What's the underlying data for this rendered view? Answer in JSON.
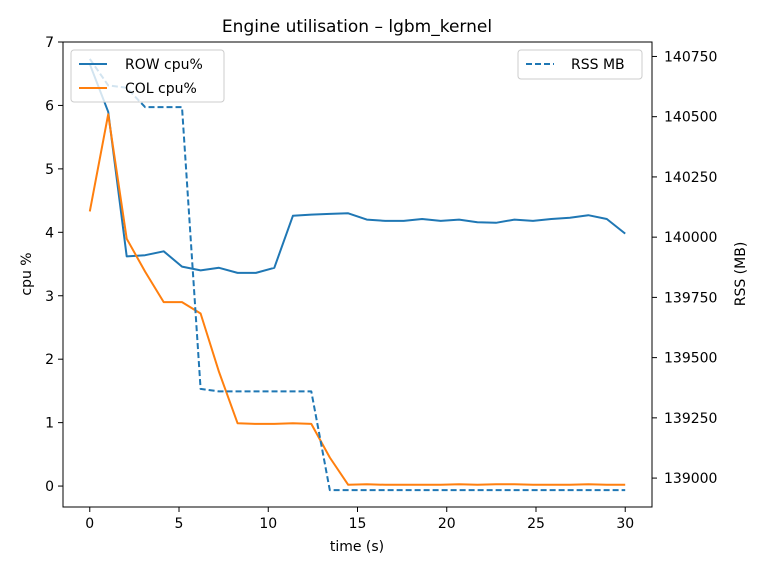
{
  "chart_data": {
    "type": "line",
    "title": "Engine utilisation – lgbm_kernel",
    "xlabel": "time (s)",
    "ylabel": "cpu %",
    "y2label": "RSS (MB)",
    "xlim": [
      -1.5,
      31.5
    ],
    "ylim": [
      -0.33,
      7.0
    ],
    "y2lim": [
      138880,
      140810
    ],
    "xticks": [
      0,
      5,
      10,
      15,
      20,
      25,
      30
    ],
    "yticks": [
      0,
      1,
      2,
      3,
      4,
      5,
      6,
      7
    ],
    "y2ticks": [
      139000,
      139250,
      139500,
      139750,
      140000,
      140250,
      140500,
      140750
    ],
    "grid": false,
    "legend_left": "top-left",
    "legend_right": "top-right",
    "x": [
      0,
      1.03,
      2.07,
      3.1,
      4.14,
      5.17,
      6.21,
      7.24,
      8.28,
      9.31,
      10.34,
      11.38,
      12.41,
      13.45,
      14.48,
      15.52,
      16.55,
      17.59,
      18.62,
      19.66,
      20.69,
      21.72,
      22.76,
      23.79,
      24.83,
      25.86,
      26.9,
      27.93,
      28.97,
      30
    ],
    "series": [
      {
        "name": "ROW cpu%",
        "axis": "left",
        "color": "#1f77b4",
        "style": "solid",
        "values": [
          6.65,
          5.9,
          3.62,
          3.64,
          3.7,
          3.46,
          3.4,
          3.44,
          3.36,
          3.36,
          3.44,
          4.26,
          4.28,
          4.29,
          4.3,
          4.2,
          4.18,
          4.18,
          4.21,
          4.18,
          4.2,
          4.16,
          4.15,
          4.2,
          4.18,
          4.21,
          4.23,
          4.27,
          4.21,
          3.98
        ]
      },
      {
        "name": "COL cpu%",
        "axis": "left",
        "color": "#ff7f0e",
        "style": "solid",
        "values": [
          4.33,
          5.86,
          3.9,
          3.38,
          2.9,
          2.9,
          2.72,
          1.8,
          0.99,
          0.98,
          0.98,
          0.99,
          0.98,
          0.45,
          0.02,
          0.03,
          0.02,
          0.02,
          0.02,
          0.02,
          0.03,
          0.02,
          0.03,
          0.03,
          0.02,
          0.02,
          0.02,
          0.03,
          0.02,
          0.02
        ]
      },
      {
        "name": "RSS MB",
        "axis": "right",
        "color": "#1f77b4",
        "style": "dashed",
        "values": [
          140740,
          140630,
          140620,
          140540,
          140540,
          140540,
          139370,
          139360,
          139360,
          139360,
          139360,
          139360,
          139360,
          138950,
          138950,
          138950,
          138950,
          138950,
          138950,
          138950,
          138950,
          138950,
          138950,
          138950,
          138950,
          138950,
          138950,
          138950,
          138950,
          138950
        ]
      }
    ]
  }
}
